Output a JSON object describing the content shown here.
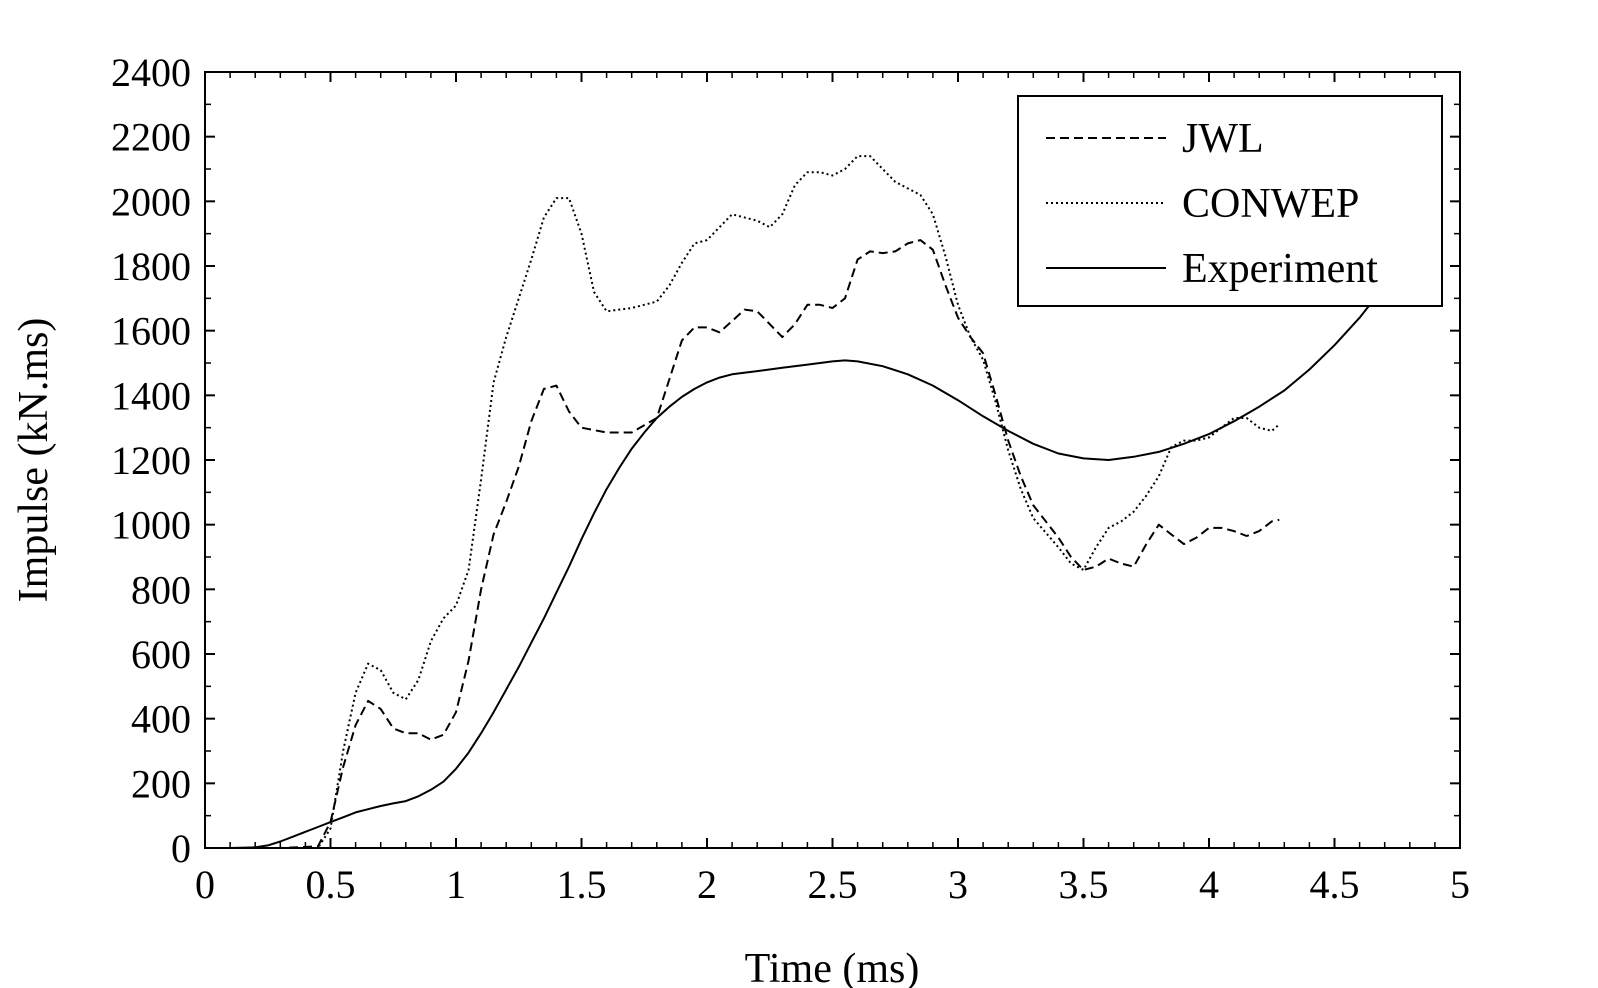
{
  "chart_data": {
    "type": "line",
    "title": "",
    "xlabel": "Time (ms)",
    "ylabel": "Impulse (kN.ms)",
    "xlim": [
      0,
      5
    ],
    "ylim": [
      0,
      2400
    ],
    "x_ticks": [
      "0",
      "0.5",
      "1",
      "1.5",
      "2",
      "2.5",
      "3",
      "3.5",
      "4",
      "4.5",
      "5"
    ],
    "y_ticks": [
      "0",
      "200",
      "400",
      "600",
      "800",
      "1000",
      "1200",
      "1400",
      "1600",
      "1800",
      "2000",
      "2200",
      "2400"
    ],
    "grid": false,
    "legend_position": "top-right",
    "series": [
      {
        "name": "JWL",
        "style": "dashed",
        "color": "#000000",
        "points": [
          [
            0,
            0
          ],
          [
            0.3,
            0
          ],
          [
            0.45,
            5
          ],
          [
            0.5,
            80
          ],
          [
            0.55,
            250
          ],
          [
            0.6,
            380
          ],
          [
            0.65,
            455
          ],
          [
            0.7,
            430
          ],
          [
            0.75,
            370
          ],
          [
            0.8,
            355
          ],
          [
            0.85,
            355
          ],
          [
            0.9,
            335
          ],
          [
            0.95,
            350
          ],
          [
            1.0,
            420
          ],
          [
            1.05,
            580
          ],
          [
            1.1,
            800
          ],
          [
            1.15,
            970
          ],
          [
            1.2,
            1070
          ],
          [
            1.25,
            1180
          ],
          [
            1.3,
            1320
          ],
          [
            1.35,
            1420
          ],
          [
            1.4,
            1430
          ],
          [
            1.45,
            1350
          ],
          [
            1.5,
            1300
          ],
          [
            1.6,
            1285
          ],
          [
            1.7,
            1285
          ],
          [
            1.8,
            1330
          ],
          [
            1.85,
            1450
          ],
          [
            1.9,
            1570
          ],
          [
            1.95,
            1610
          ],
          [
            2.0,
            1610
          ],
          [
            2.05,
            1595
          ],
          [
            2.1,
            1630
          ],
          [
            2.15,
            1665
          ],
          [
            2.2,
            1660
          ],
          [
            2.25,
            1620
          ],
          [
            2.3,
            1580
          ],
          [
            2.35,
            1620
          ],
          [
            2.4,
            1680
          ],
          [
            2.45,
            1680
          ],
          [
            2.5,
            1670
          ],
          [
            2.55,
            1700
          ],
          [
            2.6,
            1820
          ],
          [
            2.65,
            1845
          ],
          [
            2.7,
            1840
          ],
          [
            2.75,
            1845
          ],
          [
            2.8,
            1870
          ],
          [
            2.85,
            1880
          ],
          [
            2.9,
            1850
          ],
          [
            2.95,
            1740
          ],
          [
            3.0,
            1640
          ],
          [
            3.05,
            1580
          ],
          [
            3.1,
            1530
          ],
          [
            3.15,
            1400
          ],
          [
            3.2,
            1260
          ],
          [
            3.25,
            1150
          ],
          [
            3.3,
            1060
          ],
          [
            3.4,
            960
          ],
          [
            3.45,
            900
          ],
          [
            3.5,
            860
          ],
          [
            3.55,
            870
          ],
          [
            3.6,
            895
          ],
          [
            3.65,
            880
          ],
          [
            3.7,
            870
          ],
          [
            3.75,
            940
          ],
          [
            3.8,
            1000
          ],
          [
            3.85,
            970
          ],
          [
            3.9,
            940
          ],
          [
            3.95,
            960
          ],
          [
            4.0,
            990
          ],
          [
            4.05,
            990
          ],
          [
            4.1,
            980
          ],
          [
            4.15,
            965
          ],
          [
            4.2,
            980
          ],
          [
            4.25,
            1010
          ],
          [
            4.28,
            1015
          ]
        ]
      },
      {
        "name": "CONWEP",
        "style": "dotted",
        "color": "#000000",
        "points": [
          [
            0,
            0
          ],
          [
            0.3,
            0
          ],
          [
            0.45,
            0
          ],
          [
            0.5,
            60
          ],
          [
            0.55,
            300
          ],
          [
            0.6,
            480
          ],
          [
            0.65,
            570
          ],
          [
            0.7,
            550
          ],
          [
            0.75,
            480
          ],
          [
            0.8,
            460
          ],
          [
            0.85,
            520
          ],
          [
            0.9,
            640
          ],
          [
            0.95,
            710
          ],
          [
            1.0,
            750
          ],
          [
            1.05,
            860
          ],
          [
            1.1,
            1140
          ],
          [
            1.15,
            1440
          ],
          [
            1.2,
            1580
          ],
          [
            1.25,
            1700
          ],
          [
            1.3,
            1820
          ],
          [
            1.35,
            1950
          ],
          [
            1.4,
            2010
          ],
          [
            1.45,
            2010
          ],
          [
            1.5,
            1900
          ],
          [
            1.55,
            1720
          ],
          [
            1.6,
            1660
          ],
          [
            1.7,
            1670
          ],
          [
            1.8,
            1690
          ],
          [
            1.85,
            1740
          ],
          [
            1.9,
            1810
          ],
          [
            1.95,
            1870
          ],
          [
            2.0,
            1880
          ],
          [
            2.05,
            1920
          ],
          [
            2.1,
            1960
          ],
          [
            2.15,
            1950
          ],
          [
            2.2,
            1940
          ],
          [
            2.25,
            1920
          ],
          [
            2.3,
            1960
          ],
          [
            2.35,
            2050
          ],
          [
            2.4,
            2090
          ],
          [
            2.45,
            2090
          ],
          [
            2.5,
            2080
          ],
          [
            2.55,
            2100
          ],
          [
            2.6,
            2140
          ],
          [
            2.65,
            2140
          ],
          [
            2.7,
            2100
          ],
          [
            2.75,
            2060
          ],
          [
            2.8,
            2040
          ],
          [
            2.85,
            2020
          ],
          [
            2.9,
            1960
          ],
          [
            2.95,
            1830
          ],
          [
            3.0,
            1680
          ],
          [
            3.05,
            1580
          ],
          [
            3.1,
            1510
          ],
          [
            3.15,
            1380
          ],
          [
            3.2,
            1230
          ],
          [
            3.25,
            1110
          ],
          [
            3.3,
            1020
          ],
          [
            3.4,
            930
          ],
          [
            3.45,
            880
          ],
          [
            3.5,
            860
          ],
          [
            3.55,
            930
          ],
          [
            3.6,
            990
          ],
          [
            3.65,
            1010
          ],
          [
            3.7,
            1040
          ],
          [
            3.75,
            1090
          ],
          [
            3.8,
            1150
          ],
          [
            3.85,
            1240
          ],
          [
            3.9,
            1260
          ],
          [
            3.95,
            1260
          ],
          [
            4.0,
            1270
          ],
          [
            4.05,
            1300
          ],
          [
            4.1,
            1330
          ],
          [
            4.15,
            1330
          ],
          [
            4.2,
            1300
          ],
          [
            4.25,
            1290
          ],
          [
            4.28,
            1310
          ]
        ]
      },
      {
        "name": "Experiment",
        "style": "solid",
        "color": "#000000",
        "points": [
          [
            0,
            0
          ],
          [
            0.1,
            0
          ],
          [
            0.2,
            2
          ],
          [
            0.25,
            8
          ],
          [
            0.3,
            20
          ],
          [
            0.35,
            35
          ],
          [
            0.4,
            50
          ],
          [
            0.45,
            65
          ],
          [
            0.5,
            80
          ],
          [
            0.55,
            95
          ],
          [
            0.6,
            110
          ],
          [
            0.65,
            120
          ],
          [
            0.7,
            130
          ],
          [
            0.75,
            138
          ],
          [
            0.8,
            145
          ],
          [
            0.85,
            160
          ],
          [
            0.9,
            180
          ],
          [
            0.95,
            205
          ],
          [
            1.0,
            245
          ],
          [
            1.05,
            295
          ],
          [
            1.1,
            355
          ],
          [
            1.15,
            420
          ],
          [
            1.2,
            490
          ],
          [
            1.25,
            560
          ],
          [
            1.3,
            635
          ],
          [
            1.35,
            710
          ],
          [
            1.4,
            790
          ],
          [
            1.45,
            870
          ],
          [
            1.5,
            955
          ],
          [
            1.55,
            1035
          ],
          [
            1.6,
            1110
          ],
          [
            1.65,
            1175
          ],
          [
            1.7,
            1235
          ],
          [
            1.75,
            1285
          ],
          [
            1.8,
            1330
          ],
          [
            1.85,
            1365
          ],
          [
            1.9,
            1395
          ],
          [
            1.95,
            1420
          ],
          [
            2.0,
            1440
          ],
          [
            2.05,
            1455
          ],
          [
            2.1,
            1465
          ],
          [
            2.2,
            1475
          ],
          [
            2.3,
            1485
          ],
          [
            2.4,
            1495
          ],
          [
            2.5,
            1505
          ],
          [
            2.55,
            1508
          ],
          [
            2.6,
            1505
          ],
          [
            2.7,
            1490
          ],
          [
            2.8,
            1465
          ],
          [
            2.9,
            1430
          ],
          [
            3.0,
            1385
          ],
          [
            3.1,
            1335
          ],
          [
            3.2,
            1290
          ],
          [
            3.3,
            1250
          ],
          [
            3.4,
            1220
          ],
          [
            3.5,
            1205
          ],
          [
            3.6,
            1200
          ],
          [
            3.7,
            1210
          ],
          [
            3.8,
            1225
          ],
          [
            3.9,
            1250
          ],
          [
            4.0,
            1280
          ],
          [
            4.1,
            1320
          ],
          [
            4.2,
            1365
          ],
          [
            4.3,
            1415
          ],
          [
            4.4,
            1480
          ],
          [
            4.5,
            1555
          ],
          [
            4.6,
            1640
          ],
          [
            4.65,
            1690
          ],
          [
            4.7,
            1740
          ],
          [
            4.72,
            1760
          ]
        ]
      }
    ]
  }
}
